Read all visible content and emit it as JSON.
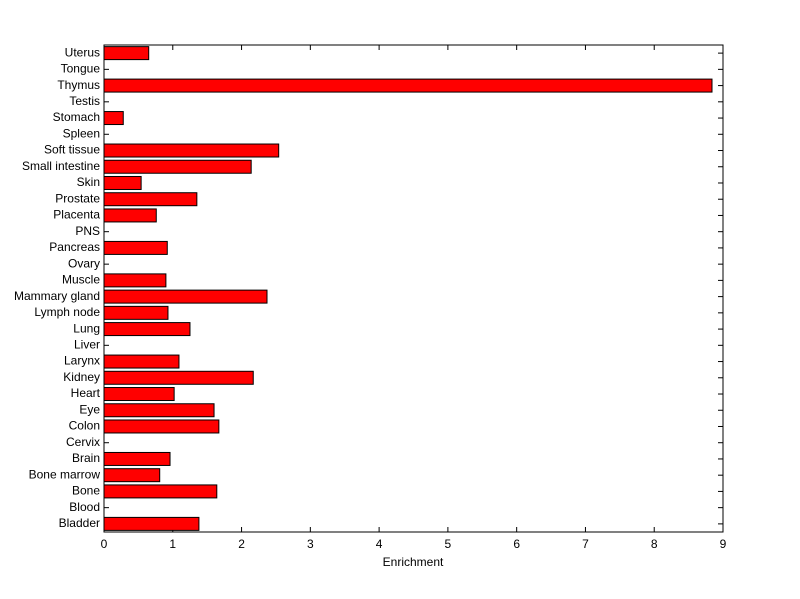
{
  "chart_data": {
    "type": "barh",
    "xlabel": "Enrichment",
    "categories": [
      "Uterus",
      "Tongue",
      "Thymus",
      "Testis",
      "Stomach",
      "Spleen",
      "Soft tissue",
      "Small intestine",
      "Skin",
      "Prostate",
      "Placenta",
      "PNS",
      "Pancreas",
      "Ovary",
      "Muscle",
      "Mammary gland",
      "Lymph node",
      "Lung",
      "Liver",
      "Larynx",
      "Kidney",
      "Heart",
      "Eye",
      "Colon",
      "Cervix",
      "Brain",
      "Bone marrow",
      "Bone",
      "Blood",
      "Bladder"
    ],
    "values": [
      0.65,
      0,
      8.84,
      0,
      0.28,
      0,
      2.54,
      2.14,
      0.54,
      1.35,
      0.76,
      0,
      0.92,
      0,
      0.9,
      2.37,
      0.93,
      1.25,
      0,
      1.09,
      2.17,
      1.02,
      1.6,
      1.67,
      0,
      0.96,
      0.81,
      1.64,
      0,
      1.38
    ],
    "color": "#ff0000",
    "xlim": [
      0,
      9
    ],
    "xticks": [
      0,
      1,
      2,
      3,
      4,
      5,
      6,
      7,
      8,
      9
    ],
    "grid": false
  }
}
